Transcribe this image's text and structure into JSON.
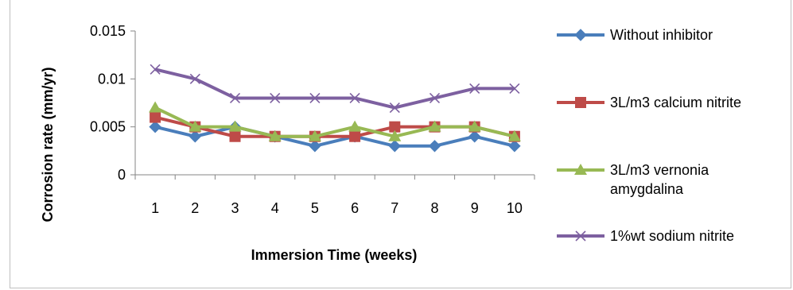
{
  "chart_data": {
    "type": "line",
    "title": "",
    "xlabel": "Immersion Time (weeks)",
    "ylabel": "Corrosion rate (mm/yr)",
    "categories": [
      "1",
      "2",
      "3",
      "4",
      "5",
      "6",
      "7",
      "8",
      "9",
      "10"
    ],
    "ylim": [
      0,
      0.015
    ],
    "yticks": [
      "0",
      "0.005",
      "0.01",
      "0.015"
    ],
    "grid": false,
    "legend_position": "right",
    "series": [
      {
        "name": "Without inhibitor",
        "color": "#4a7ebb",
        "marker": "diamond",
        "values": [
          0.005,
          0.004,
          0.005,
          0.004,
          0.003,
          0.004,
          0.003,
          0.003,
          0.004,
          0.003
        ]
      },
      {
        "name": "3L/m3 calcium nitrite",
        "color": "#be4b48",
        "marker": "square",
        "values": [
          0.006,
          0.005,
          0.004,
          0.004,
          0.004,
          0.004,
          0.005,
          0.005,
          0.005,
          0.004
        ]
      },
      {
        "name": "3L/m3 vernonia amygdalina",
        "label_lines": [
          "3L/m3 vernonia",
          "amygdalina"
        ],
        "color": "#98b954",
        "marker": "triangle",
        "values": [
          0.007,
          0.005,
          0.005,
          0.004,
          0.004,
          0.005,
          0.004,
          0.005,
          0.005,
          0.004
        ]
      },
      {
        "name": "1%wt sodium nitrite",
        "color": "#7d60a0",
        "marker": "x",
        "values": [
          0.011,
          0.01,
          0.008,
          0.008,
          0.008,
          0.008,
          0.007,
          0.008,
          0.009,
          0.009
        ]
      }
    ]
  }
}
